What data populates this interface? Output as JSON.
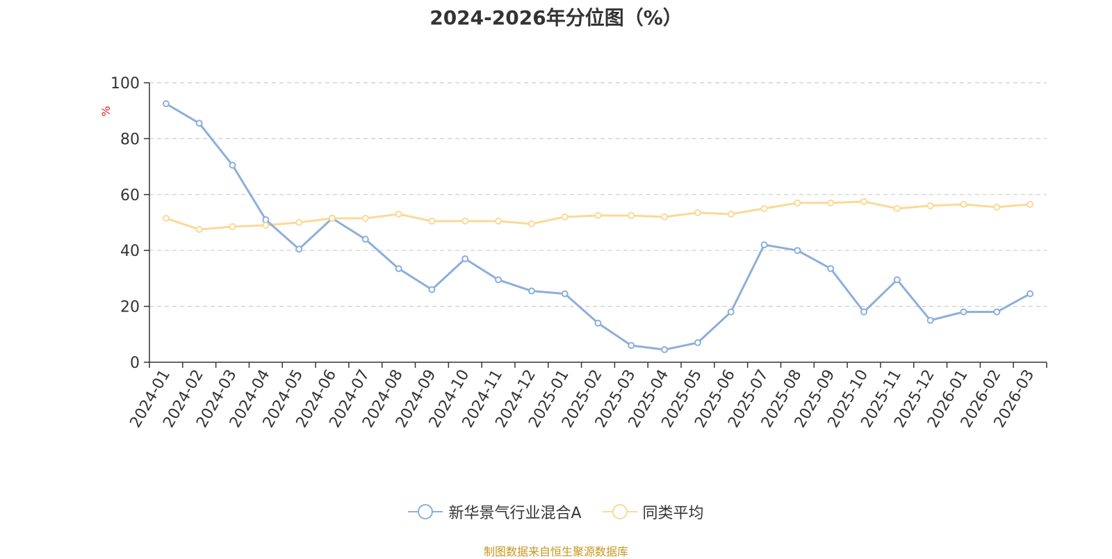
{
  "chart_data": {
    "type": "line",
    "title": "2024-2026年分位图（%）",
    "ylabel": "%",
    "ylim": [
      0,
      100
    ],
    "yticks": [
      0,
      20,
      40,
      60,
      80,
      100
    ],
    "grid": true,
    "legend_position": "bottom",
    "categories": [
      "2024-01",
      "2024-02",
      "2024-03",
      "2024-04",
      "2024-05",
      "2024-06",
      "2024-07",
      "2024-08",
      "2024-09",
      "2024-10",
      "2024-11",
      "2024-12",
      "2025-01",
      "2025-02",
      "2025-03",
      "2025-04",
      "2025-05",
      "2025-06",
      "2025-07",
      "2025-08",
      "2025-09",
      "2025-10",
      "2025-11",
      "2025-12",
      "2026-01",
      "2026-02",
      "2026-03"
    ],
    "series": [
      {
        "name": "新华景气行业混合A",
        "color": "#8caedc",
        "values": [
          92.5,
          85.5,
          70.5,
          51,
          40.5,
          51.5,
          44,
          33.5,
          26,
          37,
          29.5,
          25.5,
          24.5,
          14,
          6,
          4.5,
          7,
          18,
          42,
          40,
          33.5,
          18,
          29.5,
          15,
          18,
          18,
          24.5
        ]
      },
      {
        "name": "同类平均",
        "color": "#fbd996",
        "values": [
          51.5,
          47.5,
          48.5,
          49,
          50,
          51.5,
          51.5,
          53,
          50.5,
          50.5,
          50.5,
          49.5,
          52,
          52.5,
          52.5,
          52,
          53.5,
          53,
          55,
          57,
          57,
          57.5,
          55,
          56,
          56.5,
          55.5,
          56.5
        ]
      }
    ]
  },
  "footer": {
    "source": "制图数据来自恒生聚源数据库"
  }
}
